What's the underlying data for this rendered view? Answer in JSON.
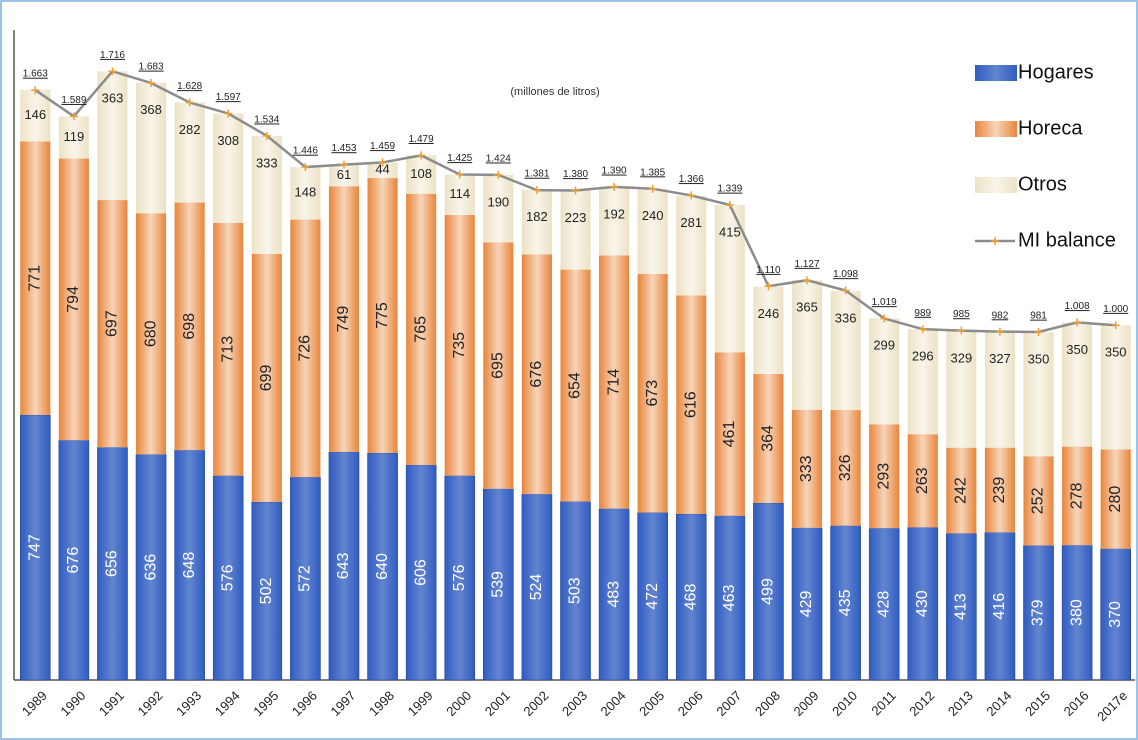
{
  "chart_data": {
    "type": "stacked_bar_line",
    "annotation": "(millones de litros)",
    "categories": [
      "1989",
      "1990",
      "1991",
      "1992",
      "1993",
      "1994",
      "1995",
      "1996",
      "1997",
      "1998",
      "1999",
      "2000",
      "2001",
      "2002",
      "2003",
      "2004",
      "2005",
      "2006",
      "2007",
      "2008",
      "2009",
      "2010",
      "2011",
      "2012",
      "2013",
      "2014",
      "2015",
      "2016",
      "2017e"
    ],
    "ylim": [
      0,
      1900
    ],
    "series": [
      {
        "name": "Hogares",
        "color": "#2f5cc0",
        "values": [
          747,
          676,
          656,
          636,
          648,
          576,
          502,
          572,
          643,
          640,
          606,
          576,
          539,
          524,
          503,
          483,
          472,
          468,
          463,
          499,
          429,
          435,
          428,
          430,
          413,
          416,
          379,
          380,
          370
        ]
      },
      {
        "name": "Horeca",
        "color": "#e8853a",
        "values": [
          771,
          794,
          697,
          680,
          698,
          713,
          699,
          726,
          749,
          775,
          765,
          735,
          695,
          676,
          654,
          714,
          673,
          616,
          461,
          364,
          333,
          326,
          293,
          263,
          242,
          239,
          252,
          278,
          280
        ]
      },
      {
        "name": "Otros",
        "color": "#ece2c4",
        "values": [
          146,
          119,
          363,
          368,
          282,
          308,
          333,
          148,
          61,
          44,
          108,
          114,
          190,
          182,
          223,
          192,
          240,
          281,
          415,
          246,
          365,
          336,
          299,
          296,
          329,
          327,
          350,
          350,
          350
        ]
      },
      {
        "name": "MI balance",
        "type": "line",
        "color": "#8c8c8c",
        "marker_color": "#f0a030",
        "values": [
          1663,
          1589,
          1716,
          1683,
          1628,
          1597,
          1534,
          1446,
          1453,
          1459,
          1479,
          1425,
          1424,
          1381,
          1380,
          1390,
          1385,
          1366,
          1339,
          1110,
          1127,
          1098,
          1019,
          989,
          985,
          982,
          981,
          1008,
          1000
        ],
        "value_labels": [
          "1.663",
          "1.589",
          "1.716",
          "1.683",
          "1.628",
          "1.597",
          "1.534",
          "1.446",
          "1.453",
          "1.459",
          "1.479",
          "1.425",
          "1.424",
          "1.381",
          "1.380",
          "1.390",
          "1.385",
          "1.366",
          "1.339",
          "1.110",
          "1.127",
          "1.098",
          "1.019",
          "989",
          "985",
          "982",
          "981",
          "1.008",
          "1.000"
        ]
      }
    ]
  }
}
